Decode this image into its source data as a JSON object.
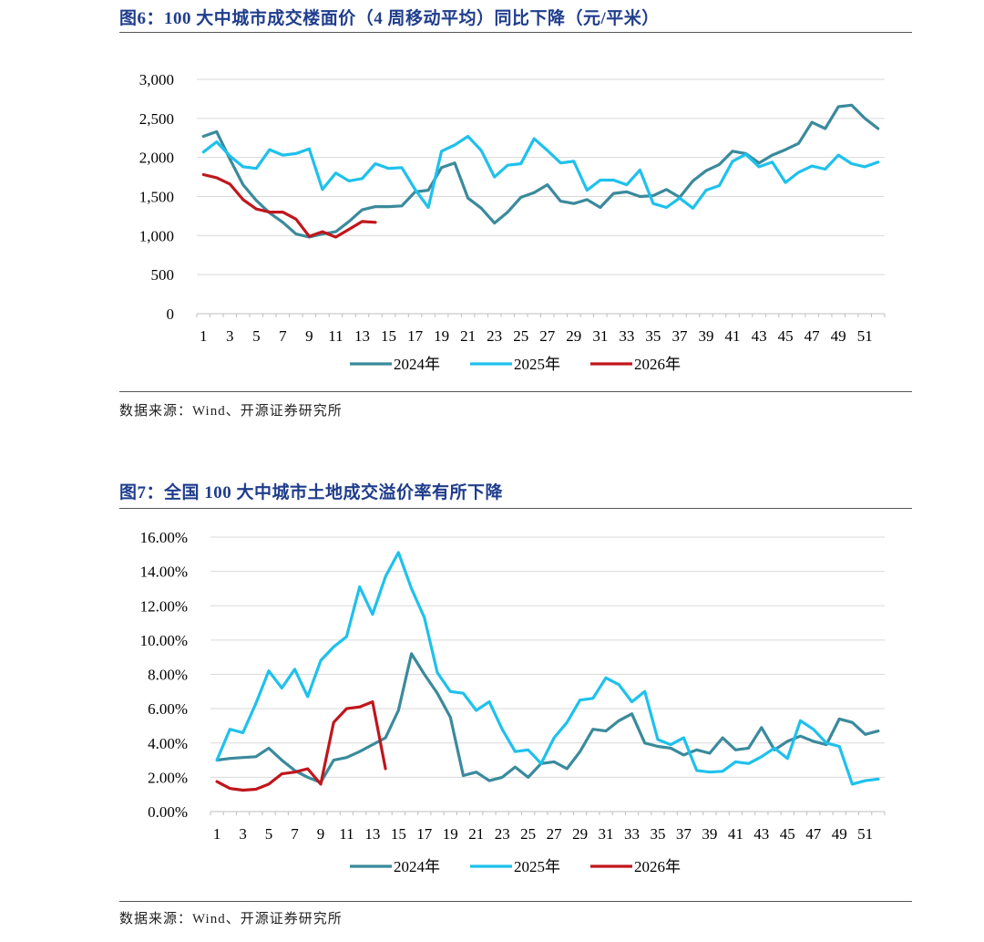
{
  "figures": [
    {
      "title": "图6：100 大中城市成交楼面价（4 周移动平均）同比下降（元/平米）",
      "source": "数据来源：Wind、开源证券研究所",
      "chart_data": {
        "type": "line",
        "title": "100大中城市成交楼面价（4周移动平均）",
        "ylim": [
          0,
          3000
        ],
        "yticks": [
          0,
          500,
          1000,
          1500,
          2000,
          2500,
          3000
        ],
        "ytick_labels": [
          "0",
          "500",
          "1,000",
          "1,500",
          "2,000",
          "2,500",
          "3,000"
        ],
        "xtick_labels": [
          "1",
          "3",
          "5",
          "7",
          "9",
          "11",
          "13",
          "15",
          "17",
          "19",
          "21",
          "23",
          "25",
          "27",
          "29",
          "31",
          "33",
          "35",
          "37",
          "39",
          "41",
          "43",
          "45",
          "47",
          "49",
          "51"
        ],
        "legend_position": "bottom",
        "series": [
          {
            "name": "2024年",
            "color": "#3a8a9c",
            "values": [
              2270,
              2330,
              1980,
              1650,
              1450,
              1290,
              1170,
              1020,
              980,
              1020,
              1050,
              1180,
              1330,
              1370,
              1370,
              1380,
              1560,
              1580,
              1870,
              1930,
              1480,
              1350,
              1160,
              1300,
              1490,
              1550,
              1650,
              1440,
              1410,
              1460,
              1360,
              1540,
              1560,
              1500,
              1510,
              1590,
              1490,
              1700,
              1830,
              1910,
              2080,
              2050,
              1930,
              2030,
              2100,
              2180,
              2450,
              2370,
              2650,
              2670,
              2500,
              2370
            ]
          },
          {
            "name": "2025年",
            "color": "#1ec1ec",
            "values": [
              2070,
              2200,
              2020,
              1880,
              1860,
              2100,
              2030,
              2050,
              2110,
              1590,
              1800,
              1700,
              1730,
              1920,
              1860,
              1870,
              1590,
              1360,
              2080,
              2160,
              2270,
              2090,
              1750,
              1900,
              1920,
              2240,
              2090,
              1930,
              1950,
              1580,
              1710,
              1710,
              1650,
              1840,
              1410,
              1360,
              1480,
              1350,
              1580,
              1640,
              1950,
              2040,
              1880,
              1940,
              1680,
              1810,
              1890,
              1850,
              2030,
              1920,
              1880,
              1940
            ]
          },
          {
            "name": "2026年",
            "color": "#c0161c",
            "values": [
              1780,
              1740,
              1660,
              1460,
              1340,
              1300,
              1300,
              1210,
              990,
              1050,
              980,
              1080,
              1180,
              1170
            ]
          }
        ]
      }
    },
    {
      "title": "图7：全国 100 大中城市土地成交溢价率有所下降",
      "source": "数据来源：Wind、开源证券研究所",
      "chart_data": {
        "type": "line",
        "title": "全国100大中城市土地成交溢价率",
        "ylim": [
          0,
          16
        ],
        "yticks": [
          0,
          2,
          4,
          6,
          8,
          10,
          12,
          14,
          16
        ],
        "ytick_labels": [
          "0.00%",
          "2.00%",
          "4.00%",
          "6.00%",
          "8.00%",
          "10.00%",
          "12.00%",
          "14.00%",
          "16.00%"
        ],
        "xtick_labels": [
          "1",
          "3",
          "5",
          "7",
          "9",
          "11",
          "13",
          "15",
          "17",
          "19",
          "21",
          "23",
          "25",
          "27",
          "29",
          "31",
          "33",
          "35",
          "37",
          "39",
          "41",
          "43",
          "45",
          "47",
          "49",
          "51"
        ],
        "legend_position": "bottom",
        "series": [
          {
            "name": "2024年",
            "color": "#3a8a9c",
            "values": [
              3.0,
              3.1,
              3.15,
              3.2,
              3.7,
              3.0,
              2.4,
              2.0,
              1.7,
              3.0,
              3.15,
              3.5,
              3.9,
              4.3,
              5.9,
              9.2,
              8.0,
              6.9,
              5.5,
              2.1,
              2.3,
              1.8,
              2.0,
              2.6,
              2.0,
              2.8,
              2.9,
              2.5,
              3.5,
              4.8,
              4.7,
              5.3,
              5.7,
              4.0,
              3.8,
              3.7,
              3.3,
              3.6,
              3.4,
              4.3,
              3.6,
              3.7,
              4.9,
              3.6,
              4.1,
              4.4,
              4.1,
              3.9,
              5.4,
              5.2,
              4.5,
              4.7
            ]
          },
          {
            "name": "2025年",
            "color": "#1ec1ec",
            "values": [
              3.0,
              4.8,
              4.6,
              6.3,
              8.2,
              7.2,
              8.3,
              6.7,
              8.8,
              9.6,
              10.2,
              13.1,
              11.5,
              13.7,
              15.1,
              13.0,
              11.3,
              8.1,
              7.0,
              6.9,
              5.9,
              6.4,
              4.8,
              3.5,
              3.6,
              2.8,
              4.3,
              5.2,
              6.5,
              6.6,
              7.8,
              7.4,
              6.4,
              7.0,
              4.2,
              3.9,
              4.3,
              2.4,
              2.3,
              2.35,
              2.9,
              2.8,
              3.2,
              3.7,
              3.1,
              5.3,
              4.8,
              4.0,
              3.8,
              1.6,
              1.8,
              1.9
            ]
          },
          {
            "name": "2026年",
            "color": "#c0161c",
            "values": [
              1.75,
              1.35,
              1.25,
              1.3,
              1.6,
              2.2,
              2.3,
              2.5,
              1.6,
              5.2,
              6.0,
              6.1,
              6.4,
              2.5
            ]
          }
        ]
      }
    }
  ]
}
